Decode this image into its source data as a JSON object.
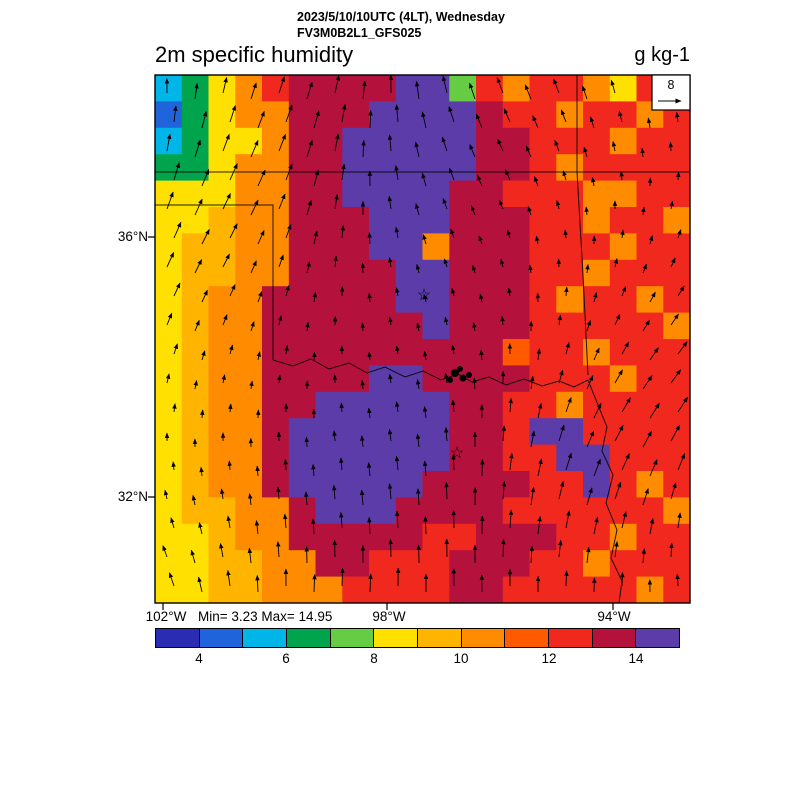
{
  "header": {
    "line1": "2023/5/10/10UTC (4LT), Wednesday",
    "line2": "FV3M0B2L1_GFS025",
    "title": "2m specific humidity",
    "units": "g kg-1"
  },
  "map": {
    "ref_vector_label": "8",
    "stats": "Min= 3.23 Max= 14.95",
    "y_ticks": [
      "36°N",
      "32°N"
    ],
    "x_ticks": [
      "102°W",
      "98°W",
      "94°W"
    ]
  },
  "icons": {
    "station_star": "☆"
  },
  "chart_data": {
    "type": "heatmap",
    "title": "2m specific humidity",
    "units": "g kg-1",
    "valid_time": "2023/5/10/10UTC (4LT), Wednesday",
    "model_run": "FV3M0B2L1_GFS025",
    "stats": {
      "min": 3.23,
      "max": 14.95
    },
    "axes": {
      "x_ticks": [
        "102°W",
        "98°W",
        "94°W"
      ],
      "y_ticks": [
        "36°N",
        "32°N"
      ]
    },
    "wind_vectors": {
      "style": "arrows",
      "reference_label": "8"
    },
    "colorbar": {
      "orientation": "horizontal",
      "levels": [
        3,
        4,
        5,
        6,
        7,
        8,
        9,
        10,
        11,
        12,
        13,
        14,
        15
      ],
      "tick_labels": [
        4,
        6,
        8,
        10,
        12,
        14
      ],
      "colors": [
        "#2a2cb4",
        "#2064dc",
        "#00b6e8",
        "#00a44c",
        "#66cc44",
        "#ffe000",
        "#ffb400",
        "#ff8c00",
        "#ff5a00",
        "#f0281e",
        "#b4123c",
        "#5c3ca8"
      ]
    },
    "field_grid": {
      "description": "Approximate 20x20 sampling of the plotted specific-humidity field over the OK/N-TX domain; each character is a hex index (0-9,a,b) into colorbar.colors.",
      "rows": [
        "23579aaaabb497997599",
        "13577aaabbbba9979979",
        "23557aabbbbbaa999799",
        "33577aabbbbbaa979999",
        "55577aabbbbaa9997799",
        "55677aaabbbaaa997997",
        "56677aaabb7aaa999799",
        "56677aaaabbaaa997999",
        "5677aaaaabbaaa979979",
        "5677aaaaaabaaa999997",
        "5677aaaaaaaaa8997999",
        "5677aaaabbaaaa999799",
        "5677aabbbbbaa9979999",
        "5677abbbbbbaa9bb9999",
        "5677abbbbbbaa99bb999",
        "5677abbbbbaaaa99b979",
        "56677abbbaaaa9999997",
        "55677aaaaa99aaa99799",
        "556677aa999aaa997999",
        "55667779999aa9999979"
      ]
    }
  }
}
